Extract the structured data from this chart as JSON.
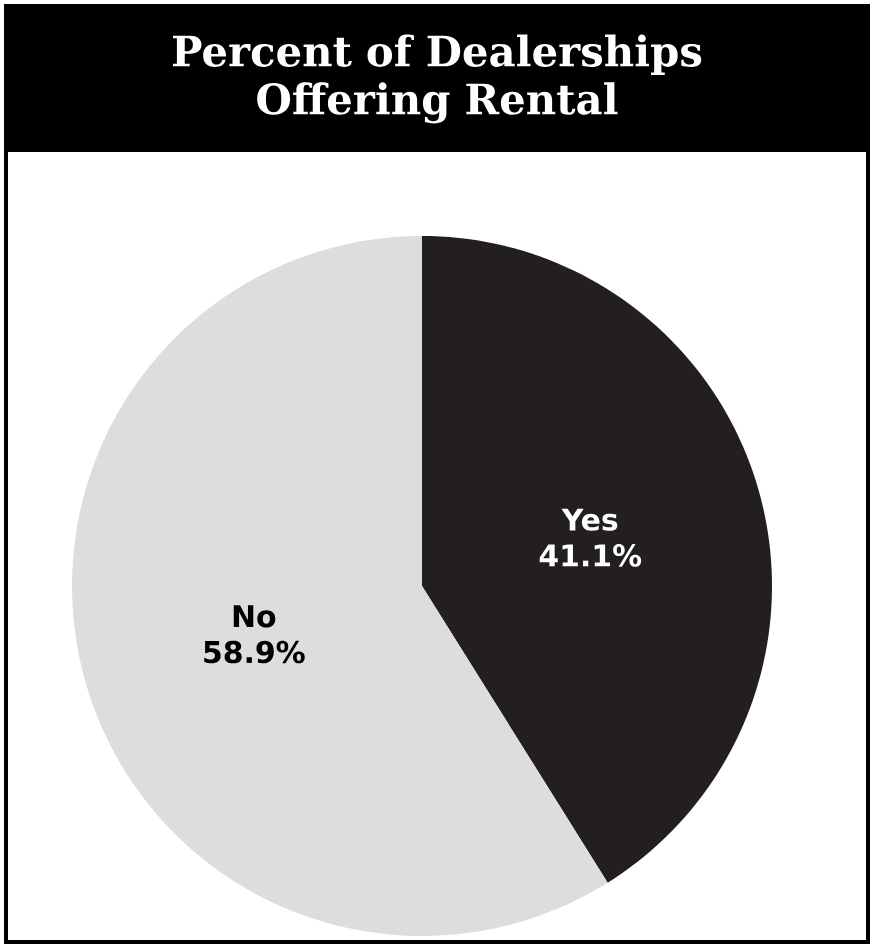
{
  "chart_data": {
    "type": "pie",
    "title": "Percent of Dealerships Offering Rental",
    "categories": [
      "Yes",
      "No"
    ],
    "values": [
      41.1,
      58.9
    ],
    "colors": [
      "#231f20",
      "#dcdddf"
    ],
    "value_labels": [
      "41.1%",
      "58.9%"
    ]
  }
}
